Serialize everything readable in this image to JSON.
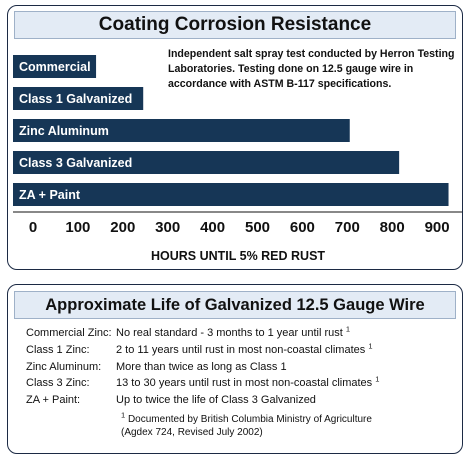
{
  "top_title": "Coating Corrosion Resistance",
  "note": "Independent salt spray test conducted by Herron Testing Laboratories.  Testing done on 12.5 gauge wire in accordance with ASTM B-117 specifications.",
  "colors": {
    "bar": "#163656",
    "title_bg": "#e3ebf5",
    "border": "#1c2a44"
  },
  "chart_data": {
    "type": "bar",
    "orientation": "horizontal",
    "categories": [
      "Commercial",
      "Class 1 Galvanized",
      "Zinc Aluminum",
      "Class 3 Galvanized",
      "ZA + Paint"
    ],
    "values": [
      185,
      290,
      750,
      860,
      970
    ],
    "xlabel": "HOURS UNTIL 5% RED RUST",
    "xticks": [
      "0",
      "100",
      "200",
      "300",
      "400",
      "500",
      "600",
      "700",
      "800",
      "900"
    ],
    "xlim": [
      0,
      1000
    ]
  },
  "bottom_title": "Approximate Life of Galvanized 12.5 Gauge Wire",
  "life": [
    {
      "label": "Commercial Zinc:",
      "value": "No real standard - 3 months to 1 year until rust",
      "sup": "1"
    },
    {
      "label": "Class 1 Zinc:",
      "value": "2 to 11 years until rust in most non-coastal climates",
      "sup": "1"
    },
    {
      "label": "Zinc Aluminum:",
      "value": "More than twice as long as Class 1",
      "sup": ""
    },
    {
      "label": "Class 3 Zinc:",
      "value": "13 to 30 years until rust in most non-coastal climates",
      "sup": "1"
    },
    {
      "label": "ZA + Paint:",
      "value": "Up to twice the life of Class 3 Galvanized",
      "sup": ""
    }
  ],
  "source": {
    "sup": "1",
    "line1": "Documented by British Columbia Ministry of Agriculture",
    "line2": "(Agdex 724, Revised July 2002)"
  }
}
